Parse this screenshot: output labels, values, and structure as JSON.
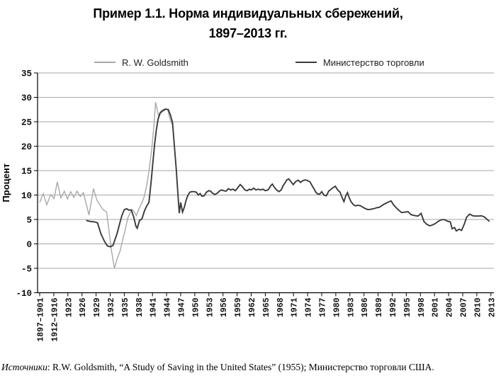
{
  "title": {
    "line1": "Пример 1.1. Норма индивидуальных сбережений,",
    "line2": "1897–2013 гг."
  },
  "source": {
    "label_italic": "Источники",
    "rest": ": R.W. Goldsmith, “A Study of Saving in the United States” (1955); Министерство торговли США."
  },
  "chart_data": {
    "type": "line",
    "title": "Пример 1.1. Норма индивидуальных сбережений, 1897–2013 гг.",
    "xlabel": "",
    "ylabel": "Процент",
    "ylim": [
      -10,
      35
    ],
    "y_step": 5,
    "y_ticks": [
      35,
      30,
      25,
      20,
      15,
      10,
      5,
      0,
      -5,
      -10
    ],
    "grid": true,
    "grid_color": "#a6a6a6",
    "legend_position": "top",
    "x_unit": "tick-index 0–32, ticks evenly spaced",
    "x_tick_labels": [
      "1897–1901",
      "1912–1916",
      "1923",
      "1926",
      "1929",
      "1932",
      "1935",
      "1938",
      "1941",
      "1944",
      "1947",
      "1950",
      "1953",
      "1956",
      "1959",
      "1962",
      "1965",
      "1968",
      "1971",
      "1974",
      "1977",
      "1980",
      "1983",
      "1986",
      "1989",
      "1992",
      "1995",
      "1998",
      "2001",
      "2004",
      "2007",
      "2010",
      "2013"
    ],
    "series": [
      {
        "name": "R. W. Goldsmith",
        "color": "#a8a8a8",
        "width": 1.4,
        "points": [
          [
            0.0,
            8.5
          ],
          [
            0.25,
            10.3
          ],
          [
            0.5,
            8.0
          ],
          [
            0.78,
            10.1
          ],
          [
            1.02,
            9.3
          ],
          [
            1.25,
            12.7
          ],
          [
            1.5,
            9.4
          ],
          [
            1.75,
            10.8
          ],
          [
            1.97,
            9.2
          ],
          [
            2.2,
            10.7
          ],
          [
            2.42,
            9.5
          ],
          [
            2.65,
            10.8
          ],
          [
            2.88,
            9.7
          ],
          [
            3.1,
            10.5
          ],
          [
            3.5,
            5.9
          ],
          [
            3.82,
            11.3
          ],
          [
            4.05,
            9.0
          ],
          [
            4.28,
            7.9
          ],
          [
            4.5,
            7.0
          ],
          [
            4.75,
            6.5
          ],
          [
            4.92,
            2.6
          ],
          [
            5.08,
            -1.2
          ],
          [
            5.3,
            -5.0
          ],
          [
            5.5,
            -3.0
          ],
          [
            5.7,
            -1.5
          ],
          [
            5.9,
            1.0
          ],
          [
            6.08,
            3.1
          ],
          [
            6.25,
            5.3
          ],
          [
            6.42,
            6.4
          ],
          [
            6.58,
            7.0
          ],
          [
            6.72,
            6.5
          ],
          [
            6.85,
            5.8
          ],
          [
            7.08,
            7.45
          ],
          [
            7.25,
            8.4
          ],
          [
            7.4,
            9.6
          ],
          [
            7.6,
            12.0
          ],
          [
            7.78,
            15.5
          ],
          [
            7.95,
            19.5
          ],
          [
            8.08,
            23.5
          ],
          [
            8.22,
            29.0
          ],
          [
            8.42,
            26.3
          ],
          [
            8.62,
            27.3
          ],
          [
            8.88,
            27.7
          ],
          [
            9.08,
            27.4
          ],
          [
            9.28,
            25.2
          ],
          [
            9.42,
            24.3
          ]
        ]
      },
      {
        "name": "Министерство торговли",
        "color": "#3a3a3a",
        "width": 1.9,
        "points": [
          [
            3.3,
            4.8
          ],
          [
            3.6,
            4.6
          ],
          [
            3.9,
            4.5
          ],
          [
            4.1,
            4.3
          ],
          [
            4.35,
            2.0
          ],
          [
            4.6,
            0.5
          ],
          [
            4.8,
            -0.4
          ],
          [
            5.0,
            -0.6
          ],
          [
            5.2,
            -0.3
          ],
          [
            5.5,
            2.2
          ],
          [
            5.67,
            4.1
          ],
          [
            5.83,
            5.8
          ],
          [
            6.0,
            7.0
          ],
          [
            6.17,
            7.2
          ],
          [
            6.33,
            6.9
          ],
          [
            6.5,
            6.95
          ],
          [
            6.67,
            5.5
          ],
          [
            6.83,
            3.6
          ],
          [
            6.92,
            3.2
          ],
          [
            7.08,
            4.8
          ],
          [
            7.25,
            5.1
          ],
          [
            7.42,
            6.7
          ],
          [
            7.58,
            7.7
          ],
          [
            7.75,
            8.5
          ],
          [
            7.9,
            12.6
          ],
          [
            8.02,
            16.4
          ],
          [
            8.15,
            20.4
          ],
          [
            8.28,
            23.5
          ],
          [
            8.4,
            25.6
          ],
          [
            8.55,
            26.8
          ],
          [
            8.72,
            27.2
          ],
          [
            8.95,
            27.6
          ],
          [
            9.12,
            27.5
          ],
          [
            9.28,
            26.3
          ],
          [
            9.42,
            24.8
          ],
          [
            9.57,
            19.5
          ],
          [
            9.7,
            14.8
          ],
          [
            9.8,
            10.4
          ],
          [
            9.9,
            6.3
          ],
          [
            10.0,
            8.5
          ],
          [
            10.13,
            6.5
          ],
          [
            10.25,
            7.45
          ],
          [
            10.38,
            8.9
          ],
          [
            10.5,
            9.85
          ],
          [
            10.65,
            10.6
          ],
          [
            10.8,
            10.7
          ],
          [
            10.95,
            10.7
          ],
          [
            11.1,
            10.6
          ],
          [
            11.25,
            10.0
          ],
          [
            11.38,
            10.3
          ],
          [
            11.5,
            9.75
          ],
          [
            11.67,
            9.85
          ],
          [
            11.83,
            10.6
          ],
          [
            12.0,
            10.9
          ],
          [
            12.12,
            10.8
          ],
          [
            12.25,
            10.4
          ],
          [
            12.42,
            10.1
          ],
          [
            12.58,
            10.35
          ],
          [
            12.75,
            10.8
          ],
          [
            12.88,
            11.05
          ],
          [
            13.05,
            10.9
          ],
          [
            13.22,
            10.8
          ],
          [
            13.38,
            11.3
          ],
          [
            13.55,
            11.05
          ],
          [
            13.72,
            11.2
          ],
          [
            13.88,
            10.9
          ],
          [
            14.05,
            11.5
          ],
          [
            14.22,
            12.15
          ],
          [
            14.38,
            11.7
          ],
          [
            14.55,
            11.05
          ],
          [
            14.72,
            10.9
          ],
          [
            14.88,
            11.2
          ],
          [
            15.0,
            11.05
          ],
          [
            15.17,
            11.4
          ],
          [
            15.33,
            11.05
          ],
          [
            15.5,
            11.2
          ],
          [
            15.67,
            11.05
          ],
          [
            15.83,
            11.2
          ],
          [
            16.0,
            10.9
          ],
          [
            16.2,
            11.05
          ],
          [
            16.37,
            11.85
          ],
          [
            16.5,
            12.25
          ],
          [
            16.63,
            11.65
          ],
          [
            16.8,
            11.05
          ],
          [
            16.97,
            10.7
          ],
          [
            17.13,
            11.05
          ],
          [
            17.25,
            11.85
          ],
          [
            17.42,
            12.6
          ],
          [
            17.53,
            13.1
          ],
          [
            17.67,
            13.3
          ],
          [
            17.83,
            12.7
          ],
          [
            17.98,
            12.15
          ],
          [
            18.17,
            12.8
          ],
          [
            18.33,
            13.05
          ],
          [
            18.5,
            12.6
          ],
          [
            18.67,
            12.95
          ],
          [
            18.83,
            13.1
          ],
          [
            19.0,
            12.95
          ],
          [
            19.17,
            12.7
          ],
          [
            19.33,
            11.85
          ],
          [
            19.47,
            11.2
          ],
          [
            19.58,
            10.6
          ],
          [
            19.72,
            10.2
          ],
          [
            19.87,
            10.2
          ],
          [
            20.0,
            10.7
          ],
          [
            20.17,
            9.95
          ],
          [
            20.33,
            9.85
          ],
          [
            20.5,
            10.8
          ],
          [
            20.67,
            11.2
          ],
          [
            20.8,
            11.5
          ],
          [
            20.97,
            11.8
          ],
          [
            21.13,
            11.05
          ],
          [
            21.3,
            10.6
          ],
          [
            21.47,
            9.3
          ],
          [
            21.58,
            8.65
          ],
          [
            21.7,
            9.75
          ],
          [
            21.83,
            10.5
          ],
          [
            21.97,
            9.3
          ],
          [
            22.08,
            8.65
          ],
          [
            22.25,
            8.0
          ],
          [
            22.4,
            7.8
          ],
          [
            22.58,
            7.9
          ],
          [
            22.75,
            7.8
          ],
          [
            22.9,
            7.55
          ],
          [
            23.08,
            7.25
          ],
          [
            23.25,
            7.05
          ],
          [
            23.4,
            7.05
          ],
          [
            23.58,
            7.15
          ],
          [
            23.75,
            7.25
          ],
          [
            23.9,
            7.4
          ],
          [
            24.08,
            7.5
          ],
          [
            24.25,
            7.8
          ],
          [
            24.4,
            8.1
          ],
          [
            24.58,
            8.35
          ],
          [
            24.75,
            8.6
          ],
          [
            24.92,
            8.8
          ],
          [
            25.12,
            7.9
          ],
          [
            25.42,
            7.0
          ],
          [
            25.67,
            6.4
          ],
          [
            25.92,
            6.5
          ],
          [
            26.12,
            6.6
          ],
          [
            26.33,
            6.0
          ],
          [
            26.58,
            5.8
          ],
          [
            26.83,
            5.7
          ],
          [
            27.05,
            6.25
          ],
          [
            27.25,
            4.6
          ],
          [
            27.45,
            4.0
          ],
          [
            27.67,
            3.7
          ],
          [
            27.88,
            3.9
          ],
          [
            28.08,
            4.2
          ],
          [
            28.28,
            4.65
          ],
          [
            28.5,
            4.95
          ],
          [
            28.72,
            4.95
          ],
          [
            28.92,
            4.65
          ],
          [
            29.12,
            4.5
          ],
          [
            29.25,
            3.1
          ],
          [
            29.42,
            3.35
          ],
          [
            29.55,
            2.65
          ],
          [
            29.75,
            3.0
          ],
          [
            29.92,
            2.75
          ],
          [
            30.12,
            4.1
          ],
          [
            30.28,
            5.5
          ],
          [
            30.5,
            6.1
          ],
          [
            30.72,
            5.75
          ],
          [
            30.92,
            5.7
          ],
          [
            31.12,
            5.7
          ],
          [
            31.33,
            5.75
          ],
          [
            31.55,
            5.5
          ],
          [
            31.75,
            4.95
          ],
          [
            31.9,
            4.6
          ]
        ]
      }
    ]
  }
}
